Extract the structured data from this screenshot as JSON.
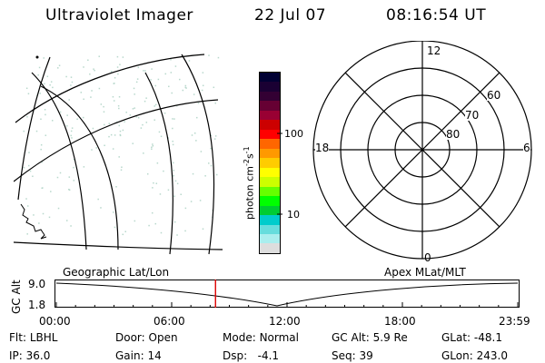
{
  "header": {
    "title": "Ultraviolet Imager",
    "date": "22 Jul 07",
    "time": "08:16:54 UT"
  },
  "colorbar": {
    "unit_text": "photon cm",
    "unit_sup1": "-2",
    "unit_s": "s",
    "unit_sup2": "-1",
    "tick_100": "100",
    "tick_10": "10",
    "colors": [
      "#000033",
      "#1a0033",
      "#330033",
      "#660033",
      "#990033",
      "#cc0000",
      "#ff0000",
      "#ff6600",
      "#ff9900",
      "#ffcc00",
      "#ffff00",
      "#ccff00",
      "#66ff00",
      "#00ff00",
      "#00cc33",
      "#00cccc",
      "#66dddd",
      "#aaeeee",
      "#dddddd"
    ]
  },
  "polar_plot": {
    "labels": {
      "top": "12",
      "bottom": "0",
      "left": "18",
      "right": "6",
      "lat60": "60",
      "lat70": "70",
      "lat80": "80"
    }
  },
  "timeline": {
    "label_left": "Geographic Lat/Lon",
    "label_right": "Apex  MLat/MLT",
    "axis_title": "GC Alt",
    "y_max": "9.0",
    "y_min": "1.8",
    "x_ticks": [
      "00:00",
      "06:00",
      "12:00",
      "18:00",
      "23:59"
    ],
    "current_marker_hours": 8.28
  },
  "status": {
    "flt_label": "Flt:",
    "flt_value": "LBHL",
    "ip_label": "IP:",
    "ip_value": "36.0",
    "door_label": "Door:",
    "door_value": "Open",
    "gain_label": "Gain:",
    "gain_value": "14",
    "mode_label": "Mode:",
    "mode_value": "Normal",
    "dsp_label": "Dsp:",
    "dsp_value": "-4.1",
    "gcalt_label": "GC Alt:",
    "gcalt_value": "5.9 Re",
    "seq_label": "Seq:",
    "seq_value": "39",
    "glat_label": "GLat:",
    "glat_value": "-48.1",
    "glon_label": "GLon:",
    "glon_value": "243.0"
  },
  "accent_colors": {
    "marker": "#dd0000",
    "speckle": "#b8d8cc"
  }
}
